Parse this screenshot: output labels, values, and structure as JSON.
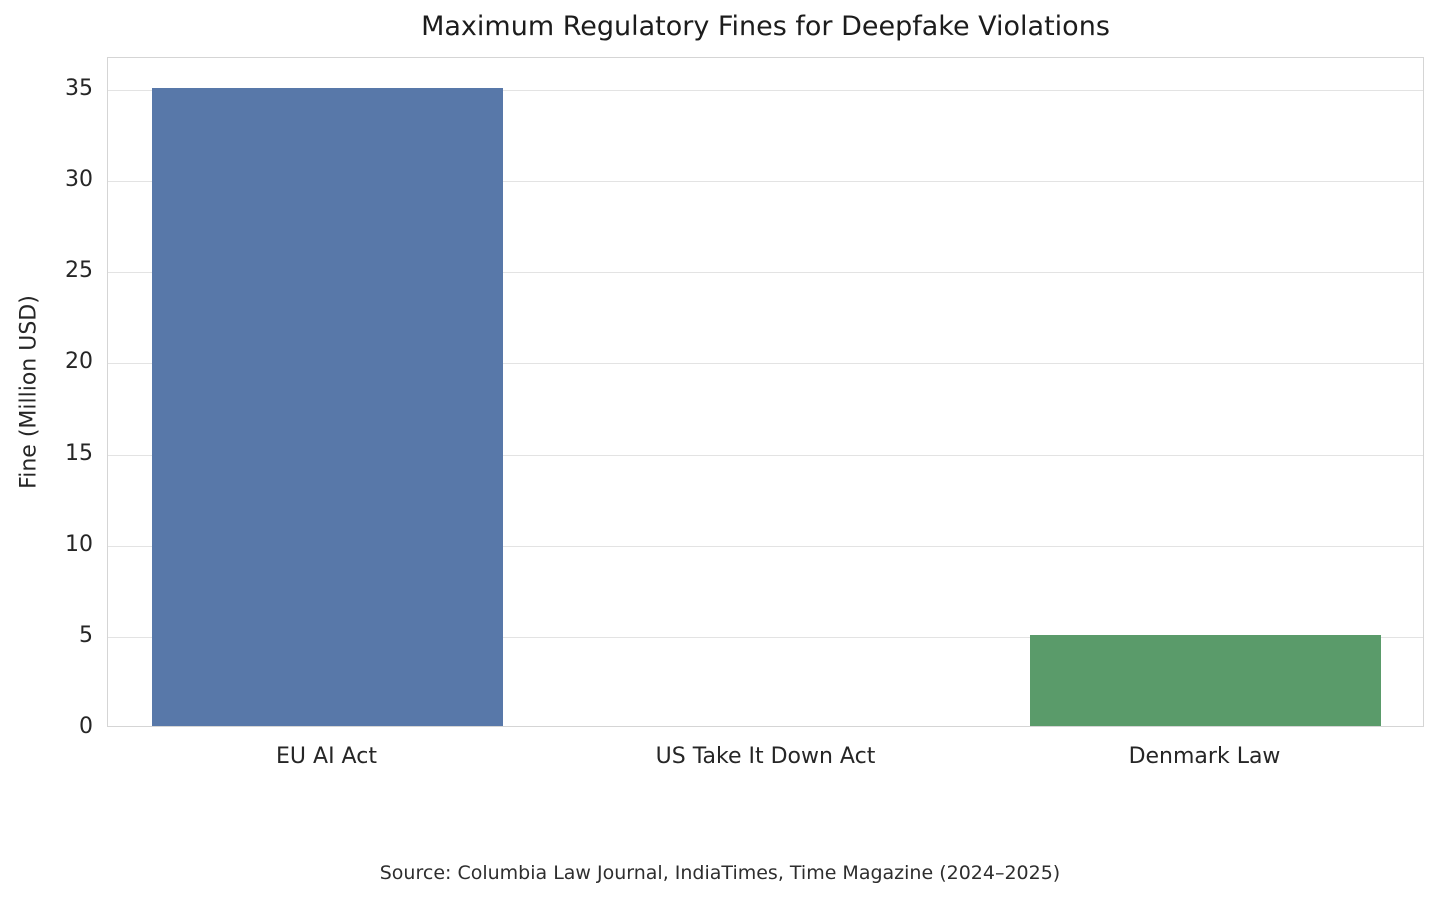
{
  "chart_data": {
    "type": "bar",
    "title": "Maximum Regulatory Fines for Deepfake Violations",
    "xlabel": "",
    "ylabel": "Fine (Million USD)",
    "categories": [
      "EU AI Act",
      "US Take It Down Act",
      "Denmark Law"
    ],
    "values": [
      35,
      0,
      5
    ],
    "bar_colors": [
      "#5878a9",
      null,
      "#5a9b6a"
    ],
    "yticks": [
      0,
      5,
      10,
      15,
      20,
      25,
      30,
      35
    ],
    "ylim": [
      0,
      36.75
    ],
    "grid": "horizontal",
    "legend": "none",
    "source_note": "Source: Columbia Law Journal, IndiaTimes, Time Magazine (2024–2025)"
  },
  "colors": {
    "background": "#ffffff",
    "plot_border": "#d5d5d5",
    "grid_line": "#e3e3e3",
    "text": "#262626",
    "bar_blue": "#5878a9",
    "bar_green": "#5a9b6a"
  }
}
